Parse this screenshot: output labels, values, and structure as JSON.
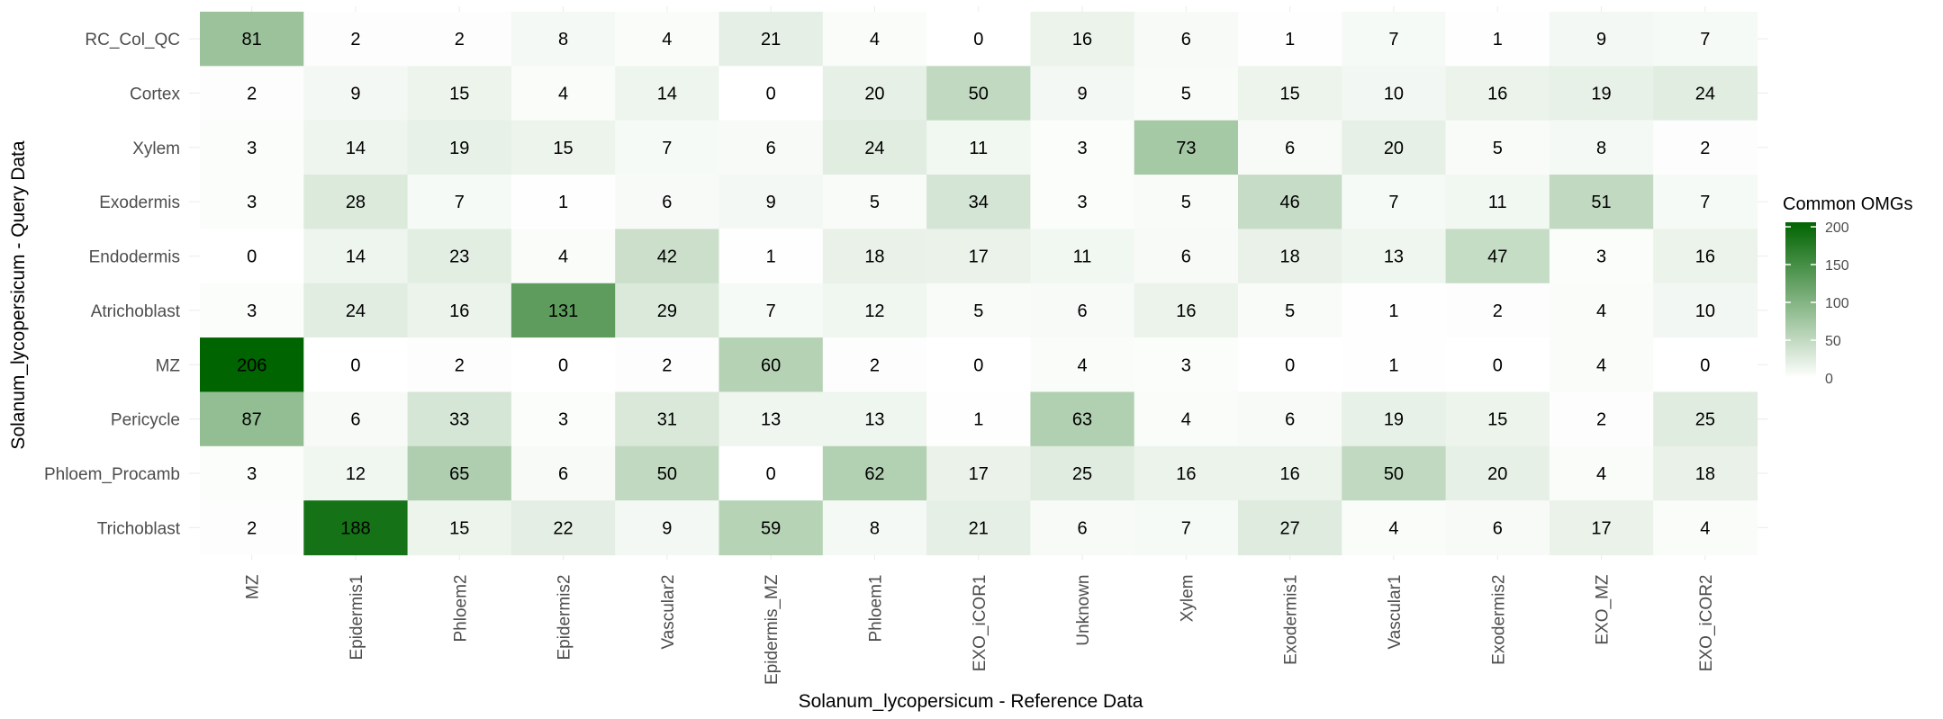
{
  "chart_data": {
    "type": "heatmap",
    "xlabel": "Solanum_lycopersicum - Reference Data",
    "ylabel": "Solanum_lycopersicum - Query Data",
    "x_categories": [
      "MZ",
      "Epidermis1",
      "Phloem2",
      "Epidermis2",
      "Vascular2",
      "Epidermis_MZ",
      "Phloem1",
      "EXO_iCOR1",
      "Unknown",
      "Xylem",
      "Exodermis1",
      "Vascular1",
      "Exodermis2",
      "EXO_MZ",
      "EXO_iCOR2"
    ],
    "y_categories": [
      "RC_Col_QC",
      "Cortex",
      "Xylem",
      "Exodermis",
      "Endodermis",
      "Atrichoblast",
      "MZ",
      "Pericycle",
      "Phloem_Procamb",
      "Trichoblast"
    ],
    "values": [
      [
        81,
        2,
        2,
        8,
        4,
        21,
        4,
        0,
        16,
        6,
        1,
        7,
        1,
        9,
        7
      ],
      [
        2,
        9,
        15,
        4,
        14,
        0,
        20,
        50,
        9,
        5,
        15,
        10,
        16,
        19,
        24
      ],
      [
        3,
        14,
        19,
        15,
        7,
        6,
        24,
        11,
        3,
        73,
        6,
        20,
        5,
        8,
        2
      ],
      [
        3,
        28,
        7,
        1,
        6,
        9,
        5,
        34,
        3,
        5,
        46,
        7,
        11,
        51,
        7
      ],
      [
        0,
        14,
        23,
        4,
        42,
        1,
        18,
        17,
        11,
        6,
        18,
        13,
        47,
        3,
        16
      ],
      [
        3,
        24,
        16,
        131,
        29,
        7,
        12,
        5,
        6,
        16,
        5,
        1,
        2,
        4,
        10
      ],
      [
        206,
        0,
        2,
        0,
        2,
        60,
        2,
        0,
        4,
        3,
        0,
        1,
        0,
        4,
        0
      ],
      [
        87,
        6,
        33,
        3,
        31,
        13,
        13,
        1,
        63,
        4,
        6,
        19,
        15,
        2,
        25
      ],
      [
        3,
        12,
        65,
        6,
        50,
        0,
        62,
        17,
        25,
        16,
        16,
        50,
        20,
        4,
        18
      ],
      [
        2,
        188,
        15,
        22,
        9,
        59,
        8,
        21,
        6,
        7,
        27,
        4,
        6,
        17,
        4
      ]
    ],
    "legend": {
      "title": "Common OMGs",
      "ticks": [
        0,
        50,
        100,
        150,
        200
      ],
      "range": [
        0,
        206
      ],
      "colors": {
        "low": "#ffffff",
        "high": "#006400"
      },
      "placement": "right"
    },
    "grid": true
  }
}
